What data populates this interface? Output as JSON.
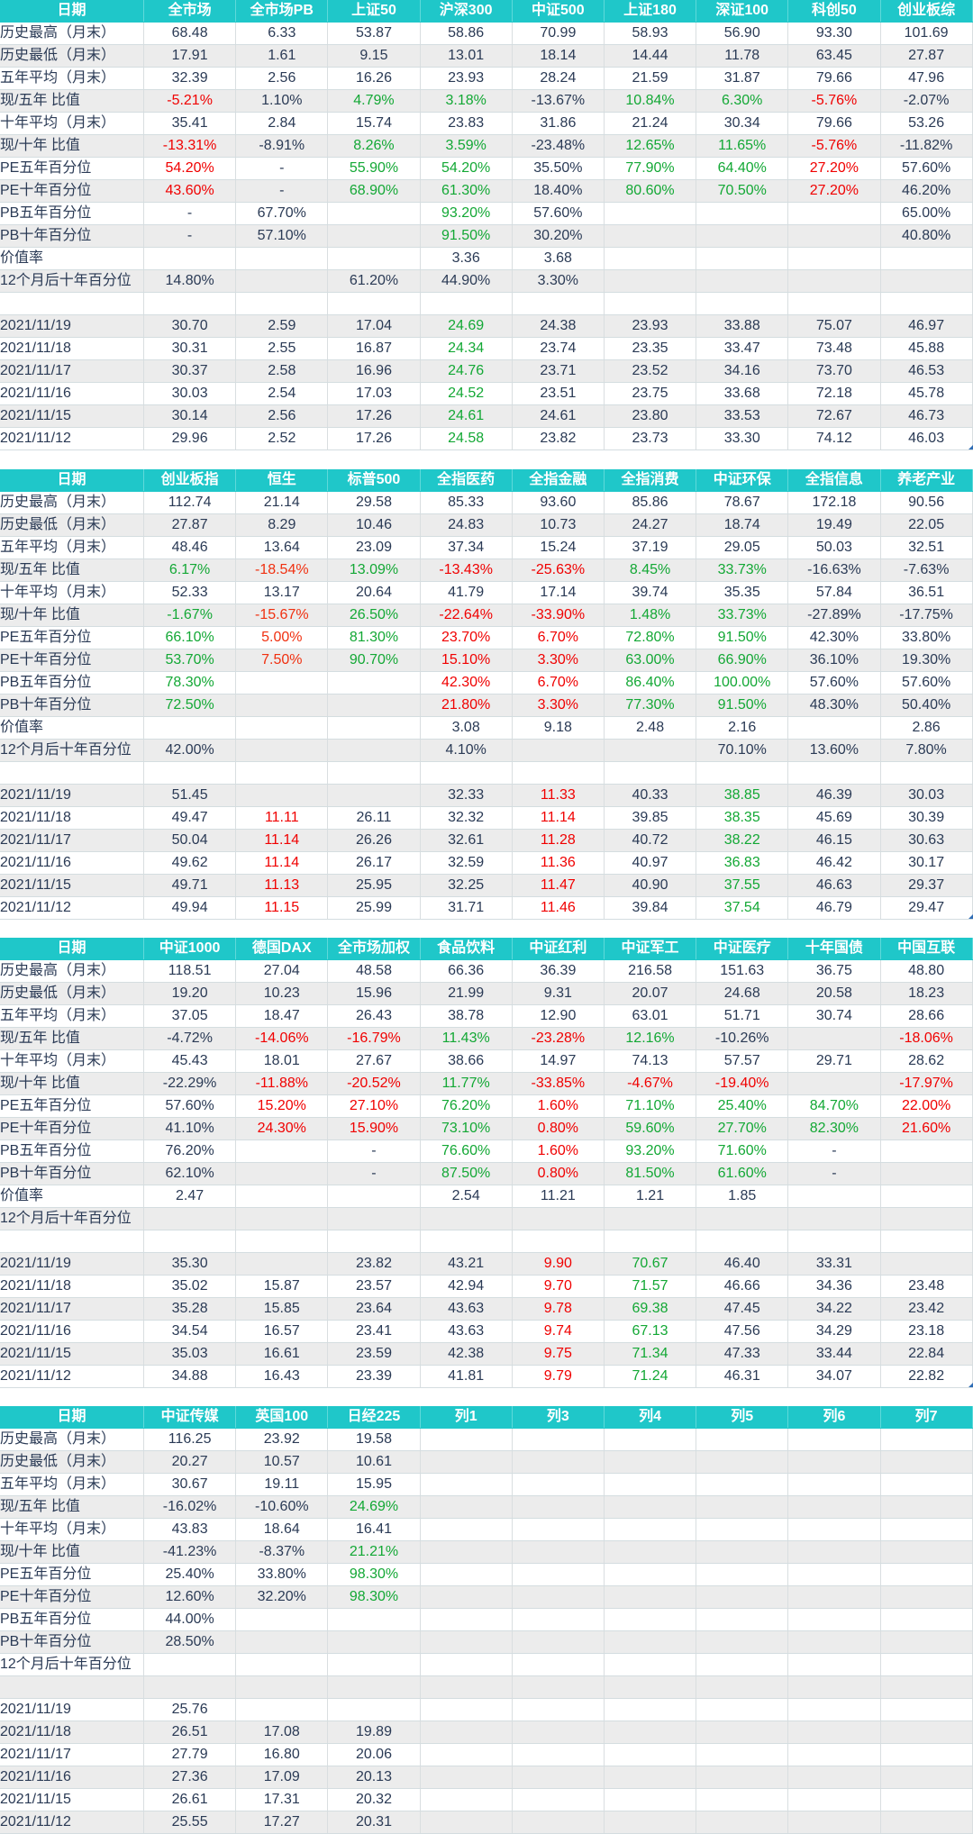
{
  "tables": [
    {
      "header": [
        "日期",
        "全市场",
        "全市场PB",
        "上证50",
        "沪深300",
        "中证500",
        "上证180",
        "深证100",
        "科创50",
        "创业板综"
      ],
      "rows": [
        [
          "历史最高（月末）",
          "68.48",
          "6.33",
          "53.87",
          "58.86",
          "70.99",
          "58.93",
          "56.90",
          "93.30",
          "101.69"
        ],
        [
          "历史最低（月末）",
          "17.91",
          "1.61",
          "9.15",
          "13.01",
          "18.14",
          "14.44",
          "11.78",
          "63.45",
          "27.87"
        ],
        [
          "五年平均（月末）",
          "32.39",
          "2.56",
          "16.26",
          "23.93",
          "28.24",
          "21.59",
          "31.87",
          "79.66",
          "47.96"
        ],
        [
          "现/五年 比值",
          "-5.21%",
          "1.10%",
          "4.79%",
          "3.18%",
          "-13.67%",
          "10.84%",
          "6.30%",
          "-5.76%",
          "-2.07%"
        ],
        [
          "十年平均（月末）",
          "35.41",
          "2.84",
          "15.74",
          "23.83",
          "31.86",
          "21.24",
          "30.34",
          "79.66",
          "53.26"
        ],
        [
          "现/十年 比值",
          "-13.31%",
          "-8.91%",
          "8.26%",
          "3.59%",
          "-23.48%",
          "12.65%",
          "11.65%",
          "-5.76%",
          "-11.82%"
        ],
        [
          "PE五年百分位",
          "54.20%",
          "-",
          "55.90%",
          "54.20%",
          "35.50%",
          "77.90%",
          "64.40%",
          "27.20%",
          "57.60%"
        ],
        [
          "PE十年百分位",
          "43.60%",
          "-",
          "68.90%",
          "61.30%",
          "18.40%",
          "80.60%",
          "70.50%",
          "27.20%",
          "46.20%"
        ],
        [
          "PB五年百分位",
          "-",
          "67.70%",
          "",
          "93.20%",
          "57.60%",
          "",
          "",
          "",
          "65.00%"
        ],
        [
          "PB十年百分位",
          "-",
          "57.10%",
          "",
          "91.50%",
          "30.20%",
          "",
          "",
          "",
          "40.80%"
        ],
        [
          "价值率",
          "",
          "",
          "",
          "3.36",
          "3.68",
          "",
          "",
          "",
          ""
        ],
        [
          "12个月后十年百分位",
          "14.80%",
          "",
          "61.20%",
          "44.90%",
          "3.30%",
          "",
          "",
          "",
          ""
        ],
        [
          "",
          "",
          "",
          "",
          "",
          "",
          "",
          "",
          "",
          ""
        ],
        [
          "2021/11/19",
          "30.70",
          "2.59",
          "17.04",
          "24.69",
          "24.38",
          "23.93",
          "33.88",
          "75.07",
          "46.97"
        ],
        [
          "2021/11/18",
          "30.31",
          "2.55",
          "16.87",
          "24.34",
          "23.74",
          "23.35",
          "33.47",
          "73.48",
          "45.88"
        ],
        [
          "2021/11/17",
          "30.37",
          "2.58",
          "16.96",
          "24.76",
          "23.71",
          "23.52",
          "34.16",
          "73.70",
          "46.53"
        ],
        [
          "2021/11/16",
          "30.03",
          "2.54",
          "17.03",
          "24.52",
          "23.51",
          "23.75",
          "33.68",
          "72.18",
          "45.78"
        ],
        [
          "2021/11/15",
          "30.14",
          "2.56",
          "17.26",
          "24.61",
          "24.61",
          "23.80",
          "33.53",
          "72.67",
          "46.73"
        ],
        [
          "2021/11/12",
          "29.96",
          "2.52",
          "17.26",
          "24.58",
          "23.82",
          "23.73",
          "33.30",
          "74.12",
          "46.03"
        ]
      ]
    },
    {
      "header": [
        "日期",
        "创业板指",
        "恒生",
        "标普500",
        "全指医药",
        "全指金融",
        "全指消费",
        "中证环保",
        "全指信息",
        "养老产业"
      ],
      "rows": [
        [
          "历史最高（月末）",
          "112.74",
          "21.14",
          "29.58",
          "85.33",
          "93.60",
          "85.86",
          "78.67",
          "172.18",
          "90.56"
        ],
        [
          "历史最低（月末）",
          "27.87",
          "8.29",
          "10.46",
          "24.83",
          "10.73",
          "24.27",
          "18.74",
          "19.49",
          "22.05"
        ],
        [
          "五年平均（月末）",
          "48.46",
          "13.64",
          "23.09",
          "37.34",
          "15.24",
          "37.19",
          "29.05",
          "50.03",
          "32.51"
        ],
        [
          "现/五年 比值",
          "6.17%",
          "-18.54%",
          "13.09%",
          "-13.43%",
          "-25.63%",
          "8.45%",
          "33.73%",
          "-16.63%",
          "-7.63%"
        ],
        [
          "十年平均（月末）",
          "52.33",
          "13.17",
          "20.64",
          "41.79",
          "17.14",
          "39.74",
          "35.35",
          "57.84",
          "36.51"
        ],
        [
          "现/十年 比值",
          "-1.67%",
          "-15.67%",
          "26.50%",
          "-22.64%",
          "-33.90%",
          "1.48%",
          "33.73%",
          "-27.89%",
          "-17.75%"
        ],
        [
          "PE五年百分位",
          "66.10%",
          "5.00%",
          "81.30%",
          "23.70%",
          "6.70%",
          "72.80%",
          "91.50%",
          "42.30%",
          "33.80%"
        ],
        [
          "PE十年百分位",
          "53.70%",
          "7.50%",
          "90.70%",
          "15.10%",
          "3.30%",
          "63.00%",
          "66.90%",
          "36.10%",
          "19.30%"
        ],
        [
          "PB五年百分位",
          "78.30%",
          "",
          "",
          "42.30%",
          "6.70%",
          "86.40%",
          "100.00%",
          "57.60%",
          "57.60%"
        ],
        [
          "PB十年百分位",
          "72.50%",
          "",
          "",
          "21.80%",
          "3.30%",
          "77.30%",
          "91.50%",
          "48.30%",
          "50.40%"
        ],
        [
          "价值率",
          "",
          "",
          "",
          "3.08",
          "9.18",
          "2.48",
          "2.16",
          "",
          "2.86"
        ],
        [
          "12个月后十年百分位",
          "42.00%",
          "",
          "",
          "4.10%",
          "",
          "",
          "70.10%",
          "13.60%",
          "7.80%"
        ],
        [
          "",
          "",
          "",
          "",
          "",
          "",
          "",
          "",
          "",
          ""
        ],
        [
          "2021/11/19",
          "51.45",
          "",
          "",
          "32.33",
          "11.33",
          "40.33",
          "38.85",
          "46.39",
          "30.03"
        ],
        [
          "2021/11/18",
          "49.47",
          "11.11",
          "26.11",
          "32.32",
          "11.14",
          "39.85",
          "38.35",
          "45.69",
          "30.39"
        ],
        [
          "2021/11/17",
          "50.04",
          "11.14",
          "26.26",
          "32.61",
          "11.28",
          "40.72",
          "38.22",
          "46.15",
          "30.63"
        ],
        [
          "2021/11/16",
          "49.62",
          "11.14",
          "26.17",
          "32.59",
          "11.36",
          "40.97",
          "36.83",
          "46.42",
          "30.17"
        ],
        [
          "2021/11/15",
          "49.71",
          "11.13",
          "25.95",
          "32.25",
          "11.47",
          "40.90",
          "37.55",
          "46.63",
          "29.37"
        ],
        [
          "2021/11/12",
          "49.94",
          "11.15",
          "25.99",
          "31.71",
          "11.46",
          "39.84",
          "37.54",
          "46.79",
          "29.47"
        ]
      ]
    },
    {
      "header": [
        "日期",
        "中证1000",
        "德国DAX",
        "全市场加权",
        "食品饮料",
        "中证红利",
        "中证军工",
        "中证医疗",
        "十年国债",
        "中国互联"
      ],
      "rows": [
        [
          "历史最高（月末）",
          "118.51",
          "27.04",
          "48.58",
          "66.36",
          "36.39",
          "216.58",
          "151.63",
          "36.75",
          "48.80"
        ],
        [
          "历史最低（月末）",
          "19.20",
          "10.23",
          "15.96",
          "21.99",
          "9.31",
          "20.07",
          "24.68",
          "20.58",
          "18.23"
        ],
        [
          "五年平均（月末）",
          "37.05",
          "18.47",
          "26.43",
          "38.78",
          "12.90",
          "63.01",
          "51.71",
          "30.74",
          "28.66"
        ],
        [
          "现/五年 比值",
          "-4.72%",
          "-14.06%",
          "-16.79%",
          "11.43%",
          "-23.28%",
          "12.16%",
          "-10.26%",
          "",
          "-18.06%"
        ],
        [
          "十年平均（月末）",
          "45.43",
          "18.01",
          "27.67",
          "38.66",
          "14.97",
          "74.13",
          "57.57",
          "29.71",
          "28.62"
        ],
        [
          "现/十年 比值",
          "-22.29%",
          "-11.88%",
          "-20.52%",
          "11.77%",
          "-33.85%",
          "-4.67%",
          "-19.40%",
          "",
          "-17.97%"
        ],
        [
          "PE五年百分位",
          "57.60%",
          "15.20%",
          "27.10%",
          "76.20%",
          "1.60%",
          "71.10%",
          "25.40%",
          "84.70%",
          "22.00%"
        ],
        [
          "PE十年百分位",
          "41.10%",
          "24.30%",
          "15.90%",
          "73.10%",
          "0.80%",
          "59.60%",
          "27.70%",
          "82.30%",
          "21.60%"
        ],
        [
          "PB五年百分位",
          "76.20%",
          "",
          "-",
          "76.60%",
          "1.60%",
          "93.20%",
          "71.60%",
          "-",
          ""
        ],
        [
          "PB十年百分位",
          "62.10%",
          "",
          "-",
          "87.50%",
          "0.80%",
          "81.50%",
          "61.60%",
          "-",
          ""
        ],
        [
          "价值率",
          "2.47",
          "",
          "",
          "2.54",
          "11.21",
          "1.21",
          "1.85",
          "",
          ""
        ],
        [
          "12个月后十年百分位",
          "",
          "",
          "",
          "",
          "",
          "",
          "",
          "",
          ""
        ],
        [
          "",
          "",
          "",
          "",
          "",
          "",
          "",
          "",
          "",
          ""
        ],
        [
          "2021/11/19",
          "35.30",
          "",
          "23.82",
          "43.21",
          "9.90",
          "70.67",
          "46.40",
          "33.31",
          ""
        ],
        [
          "2021/11/18",
          "35.02",
          "15.87",
          "23.57",
          "42.94",
          "9.70",
          "71.57",
          "46.66",
          "34.36",
          "23.48"
        ],
        [
          "2021/11/17",
          "35.28",
          "15.85",
          "23.64",
          "43.63",
          "9.78",
          "69.38",
          "47.45",
          "34.22",
          "23.42"
        ],
        [
          "2021/11/16",
          "34.54",
          "16.57",
          "23.41",
          "43.63",
          "9.74",
          "67.13",
          "47.56",
          "34.29",
          "23.18"
        ],
        [
          "2021/11/15",
          "35.03",
          "16.61",
          "23.59",
          "42.38",
          "9.75",
          "71.34",
          "47.33",
          "33.44",
          "22.84"
        ],
        [
          "2021/11/12",
          "34.88",
          "16.43",
          "23.39",
          "41.81",
          "9.79",
          "71.24",
          "46.31",
          "34.07",
          "22.82"
        ]
      ]
    },
    {
      "header": [
        "日期",
        "中证传媒",
        "英国100",
        "日经225",
        "列1",
        "列3",
        "列4",
        "列5",
        "列6",
        "列7"
      ],
      "rows": [
        [
          "历史最高（月末）",
          "116.25",
          "23.92",
          "19.58",
          "",
          "",
          "",
          "",
          "",
          ""
        ],
        [
          "历史最低（月末）",
          "20.27",
          "10.57",
          "10.61",
          "",
          "",
          "",
          "",
          "",
          ""
        ],
        [
          "五年平均（月末）",
          "30.67",
          "19.11",
          "15.95",
          "",
          "",
          "",
          "",
          "",
          ""
        ],
        [
          "现/五年 比值",
          "-16.02%",
          "-10.60%",
          "24.69%",
          "",
          "",
          "",
          "",
          "",
          ""
        ],
        [
          "十年平均（月末）",
          "43.83",
          "18.64",
          "16.41",
          "",
          "",
          "",
          "",
          "",
          ""
        ],
        [
          "现/十年 比值",
          "-41.23%",
          "-8.37%",
          "21.21%",
          "",
          "",
          "",
          "",
          "",
          ""
        ],
        [
          "PE五年百分位",
          "25.40%",
          "33.80%",
          "98.30%",
          "",
          "",
          "",
          "",
          "",
          ""
        ],
        [
          "PE十年百分位",
          "12.60%",
          "32.20%",
          "98.30%",
          "",
          "",
          "",
          "",
          "",
          ""
        ],
        [
          "PB五年百分位",
          "44.00%",
          "",
          "",
          "",
          "",
          "",
          "",
          "",
          ""
        ],
        [
          "PB十年百分位",
          "28.50%",
          "",
          "",
          "",
          "",
          "",
          "",
          "",
          ""
        ],
        [
          "12个月后十年百分位",
          "",
          "",
          "",
          "",
          "",
          "",
          "",
          "",
          ""
        ],
        [
          "",
          "",
          "",
          "",
          "",
          "",
          "",
          "",
          "",
          ""
        ],
        [
          "2021/11/19",
          "25.76",
          "",
          "",
          "",
          "",
          "",
          "",
          "",
          ""
        ],
        [
          "2021/11/18",
          "26.51",
          "17.08",
          "19.89",
          "",
          "",
          "",
          "",
          "",
          ""
        ],
        [
          "2021/11/17",
          "27.79",
          "16.80",
          "20.06",
          "",
          "",
          "",
          "",
          "",
          ""
        ],
        [
          "2021/11/16",
          "27.36",
          "17.09",
          "20.13",
          "",
          "",
          "",
          "",
          "",
          ""
        ],
        [
          "2021/11/15",
          "26.61",
          "17.31",
          "20.32",
          "",
          "",
          "",
          "",
          "",
          ""
        ],
        [
          "2021/11/12",
          "25.55",
          "17.27",
          "20.31",
          "",
          "",
          "",
          "",
          "",
          ""
        ]
      ]
    }
  ],
  "cell_colors": {
    "green": "#13a835",
    "red": "#f00000",
    "orange_red": "#f03010",
    "header_bg": "#1fc7c9"
  },
  "colored_cells": {
    "0": {
      "3": {
        "1": "r",
        "3": "g",
        "4": "g",
        "6": "g",
        "7": "g",
        "8": "r"
      },
      "5": {
        "1": "r",
        "3": "g",
        "4": "g",
        "6": "g",
        "7": "g",
        "8": "r"
      },
      "6": {
        "1": "r",
        "3": "g",
        "4": "g",
        "6": "g",
        "7": "g",
        "8": "r"
      },
      "7": {
        "1": "r",
        "3": "g",
        "4": "g",
        "6": "g",
        "7": "g",
        "8": "r"
      },
      "8": {
        "4": "g"
      },
      "9": {
        "4": "g"
      },
      "13": {
        "4": "g"
      },
      "14": {
        "4": "g"
      },
      "15": {
        "4": "g"
      },
      "16": {
        "4": "g"
      },
      "17": {
        "4": "g"
      },
      "18": {
        "4": "g"
      }
    },
    "1": {
      "3": {
        "1": "g",
        "2": "o",
        "3": "g",
        "4": "r",
        "5": "r",
        "6": "g",
        "7": "g"
      },
      "5": {
        "1": "g",
        "2": "o",
        "3": "g",
        "4": "r",
        "5": "r",
        "6": "g",
        "7": "g"
      },
      "6": {
        "1": "g",
        "2": "o",
        "3": "g",
        "4": "r",
        "5": "r",
        "6": "g",
        "7": "g"
      },
      "7": {
        "1": "g",
        "2": "o",
        "3": "g",
        "4": "r",
        "5": "r",
        "6": "g",
        "7": "g"
      },
      "8": {
        "1": "g",
        "4": "r",
        "5": "r",
        "6": "g",
        "7": "g"
      },
      "9": {
        "1": "g",
        "4": "r",
        "5": "r",
        "6": "g",
        "7": "g"
      },
      "13": {
        "5": "r",
        "7": "g"
      },
      "14": {
        "2": "r",
        "5": "r",
        "7": "g"
      },
      "15": {
        "2": "r",
        "5": "r",
        "7": "g"
      },
      "16": {
        "2": "r",
        "5": "r",
        "7": "g"
      },
      "17": {
        "2": "r",
        "5": "r",
        "7": "g"
      },
      "18": {
        "2": "r",
        "5": "r",
        "7": "g"
      }
    },
    "2": {
      "3": {
        "2": "r",
        "3": "r",
        "4": "g",
        "5": "r",
        "6": "g",
        "9": "r"
      },
      "5": {
        "2": "r",
        "3": "r",
        "4": "g",
        "5": "r",
        "6": "r",
        "7": "r",
        "9": "r"
      },
      "6": {
        "2": "r",
        "3": "r",
        "4": "g",
        "5": "r",
        "6": "g",
        "7": "g",
        "8": "g",
        "9": "r"
      },
      "7": {
        "2": "r",
        "3": "r",
        "4": "g",
        "5": "r",
        "6": "g",
        "7": "g",
        "8": "g",
        "9": "r"
      },
      "8": {
        "4": "g",
        "5": "r",
        "6": "g",
        "7": "g"
      },
      "9": {
        "4": "g",
        "5": "r",
        "6": "g",
        "7": "g"
      },
      "13": {
        "5": "r",
        "6": "g"
      },
      "14": {
        "5": "r",
        "6": "g"
      },
      "15": {
        "5": "r",
        "6": "g"
      },
      "16": {
        "5": "r",
        "6": "g"
      },
      "17": {
        "5": "r",
        "6": "g"
      },
      "18": {
        "5": "r",
        "6": "g"
      }
    },
    "3": {
      "3": {
        "3": "g"
      },
      "5": {
        "3": "g"
      },
      "6": {
        "3": "g"
      },
      "7": {
        "3": "g"
      }
    }
  }
}
